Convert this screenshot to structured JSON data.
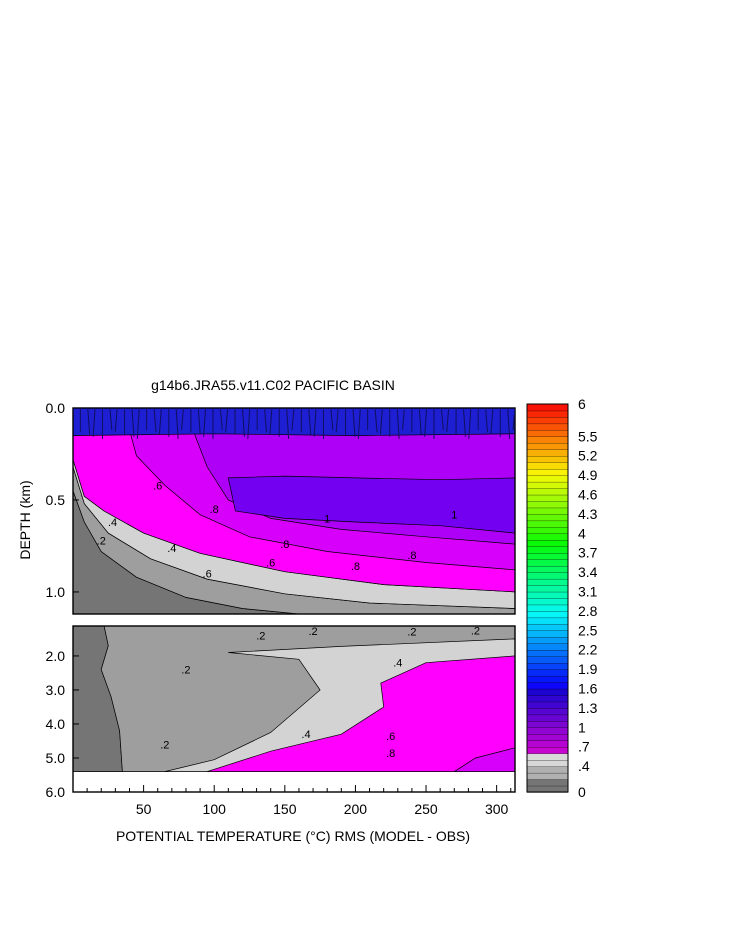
{
  "chart_data": {
    "type": "heatmap",
    "title": "g14b6.JRA55.v11.C02 PACIFIC BASIN",
    "xlabel_prefix": "POTENTIAL TEMPERATURE (",
    "xlabel_unit": "°C",
    "xlabel_suffix": ") RMS (MODEL - OBS)",
    "ylabel": "DEPTH (km)",
    "x_ticks": [
      "50",
      "100",
      "150",
      "200",
      "250",
      "300"
    ],
    "x_tick_values": [
      50,
      100,
      150,
      200,
      250,
      300
    ],
    "xlim": [
      0,
      313
    ],
    "y_ticks_upper": [
      "0.0",
      "0.5",
      "1.0"
    ],
    "y_ticks_lower": [
      "2.0",
      "3.0",
      "4.0",
      "5.0",
      "6.0"
    ],
    "y_tick_values_upper": [
      0.0,
      0.5,
      1.0
    ],
    "y_tick_values_lower": [
      2.0,
      3.0,
      4.0,
      5.0,
      6.0
    ],
    "ylim_upper": [
      0,
      1.12
    ],
    "ylim_lower": [
      1.12,
      6.0
    ],
    "colorbar": {
      "labels": [
        "6",
        "5.5",
        "5.2",
        "4.9",
        "4.6",
        "4.3",
        "4",
        "3.7",
        "3.4",
        "3.1",
        "2.8",
        "2.5",
        "2.2",
        "1.9",
        "1.6",
        "1.3",
        "1",
        ".7",
        ".4",
        "0"
      ],
      "values": [
        6,
        5.5,
        5.2,
        4.9,
        4.6,
        4.3,
        4,
        3.7,
        3.4,
        3.1,
        2.8,
        2.5,
        2.2,
        1.9,
        1.6,
        1.3,
        1,
        0.7,
        0.4,
        0
      ],
      "range": [
        0,
        6
      ]
    },
    "contour_labels": [
      ".2",
      ".4",
      ".6",
      ".8",
      "1"
    ],
    "panels": [
      {
        "name": "upper",
        "depth_range_km": [
          0,
          1.12
        ],
        "regions": [
          {
            "level": 0.0,
            "points": [
              [
                0,
                0.45
              ],
              [
                8,
                0.62
              ],
              [
                20,
                0.78
              ],
              [
                45,
                0.92
              ],
              [
                80,
                1.03
              ],
              [
                120,
                1.09
              ],
              [
                160,
                1.12
              ],
              [
                0,
                1.12
              ]
            ]
          },
          {
            "level": 0.2,
            "points": [
              [
                0,
                0.32
              ],
              [
                8,
                0.52
              ],
              [
                25,
                0.68
              ],
              [
                55,
                0.82
              ],
              [
                95,
                0.93
              ],
              [
                150,
                1.01
              ],
              [
                210,
                1.06
              ],
              [
                313,
                1.09
              ],
              [
                313,
                1.12
              ],
              [
                160,
                1.12
              ],
              [
                120,
                1.09
              ],
              [
                80,
                1.03
              ],
              [
                45,
                0.92
              ],
              [
                20,
                0.78
              ],
              [
                8,
                0.62
              ],
              [
                0,
                0.45
              ]
            ]
          },
          {
            "level": 0.4,
            "points": [
              [
                0,
                0.28
              ],
              [
                8,
                0.48
              ],
              [
                22,
                0.56
              ],
              [
                50,
                0.68
              ],
              [
                90,
                0.79
              ],
              [
                150,
                0.89
              ],
              [
                220,
                0.96
              ],
              [
                313,
                1.0
              ],
              [
                313,
                1.09
              ],
              [
                210,
                1.06
              ],
              [
                150,
                1.01
              ],
              [
                95,
                0.93
              ],
              [
                55,
                0.82
              ],
              [
                25,
                0.68
              ],
              [
                8,
                0.52
              ],
              [
                0,
                0.32
              ]
            ]
          },
          {
            "level": 0.6,
            "points": [
              [
                0,
                0.0
              ],
              [
                313,
                0.0
              ],
              [
                313,
                1.0
              ],
              [
                220,
                0.96
              ],
              [
                150,
                0.89
              ],
              [
                90,
                0.79
              ],
              [
                50,
                0.68
              ],
              [
                22,
                0.56
              ],
              [
                8,
                0.48
              ],
              [
                0,
                0.28
              ]
            ]
          },
          {
            "level": 0.8,
            "points": [
              [
                40,
                0.12
              ],
              [
                313,
                0.12
              ],
              [
                313,
                0.88
              ],
              [
                250,
                0.84
              ],
              [
                180,
                0.78
              ],
              [
                125,
                0.7
              ],
              [
                90,
                0.58
              ],
              [
                65,
                0.42
              ],
              [
                45,
                0.26
              ]
            ]
          },
          {
            "level": 1.0,
            "points": [
              [
                85,
                0.12
              ],
              [
                313,
                0.12
              ],
              [
                313,
                0.74
              ],
              [
                250,
                0.7
              ],
              [
                190,
                0.66
              ],
              [
                140,
                0.6
              ],
              [
                110,
                0.5
              ],
              [
                95,
                0.32
              ]
            ]
          },
          {
            "level": 1.3,
            "points": [
              [
                110,
                0.38
              ],
              [
                150,
                0.37
              ],
              [
                200,
                0.38
              ],
              [
                260,
                0.39
              ],
              [
                313,
                0.38
              ],
              [
                313,
                0.68
              ],
              [
                260,
                0.64
              ],
              [
                200,
                0.62
              ],
              [
                150,
                0.6
              ],
              [
                115,
                0.56
              ]
            ]
          },
          {
            "level": 1.6,
            "points": [
              [
                0,
                0.0
              ],
              [
                313,
                0.0
              ],
              [
                313,
                0.14
              ],
              [
                200,
                0.15
              ],
              [
                100,
                0.14
              ],
              [
                0,
                0.15
              ]
            ]
          }
        ]
      },
      {
        "name": "lower",
        "depth_range_km": [
          1.12,
          6.0
        ],
        "regions": [
          {
            "level": 0.0,
            "points": [
              [
                0,
                1.12
              ],
              [
                22,
                1.12
              ],
              [
                25,
                1.7
              ],
              [
                20,
                2.4
              ],
              [
                27,
                3.2
              ],
              [
                33,
                4.2
              ],
              [
                35,
                5.4
              ],
              [
                0,
                5.4
              ]
            ]
          },
          {
            "level": 0.2,
            "points": [
              [
                22,
                1.12
              ],
              [
                313,
                1.12
              ],
              [
                313,
                5.4
              ],
              [
                35,
                5.4
              ],
              [
                33,
                4.2
              ],
              [
                27,
                3.2
              ],
              [
                20,
                2.4
              ],
              [
                25,
                1.7
              ]
            ]
          },
          {
            "level": 0.4,
            "points": [
              [
                65,
                5.4
              ],
              [
                100,
                5.05
              ],
              [
                140,
                4.25
              ],
              [
                175,
                3.0
              ],
              [
                160,
                2.1
              ],
              [
                110,
                1.9
              ],
              [
                190,
                1.72
              ],
              [
                313,
                1.5
              ],
              [
                313,
                5.4
              ]
            ]
          },
          {
            "level": 0.6,
            "points": [
              [
                95,
                5.4
              ],
              [
                140,
                4.8
              ],
              [
                190,
                4.3
              ],
              [
                220,
                3.5
              ],
              [
                218,
                2.8
              ],
              [
                250,
                2.2
              ],
              [
                313,
                2.0
              ],
              [
                313,
                5.4
              ]
            ]
          },
          {
            "level": 0.8,
            "points": [
              [
                270,
                5.4
              ],
              [
                285,
                5.0
              ],
              [
                313,
                4.7
              ],
              [
                313,
                5.4
              ]
            ]
          }
        ]
      }
    ]
  }
}
